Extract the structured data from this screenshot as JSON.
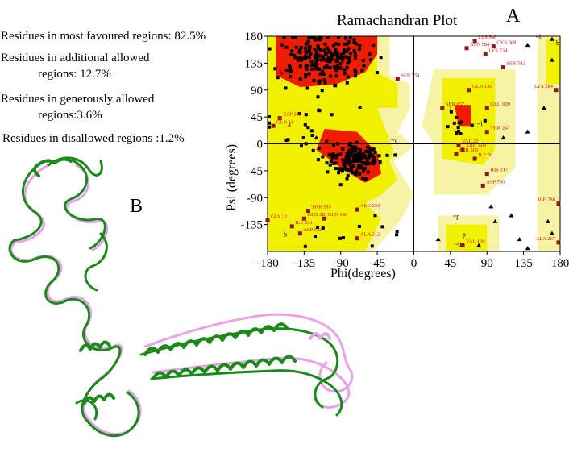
{
  "stats": {
    "favoured_label": "Residues in most favoured regions",
    "favoured_value": ": 82.5%",
    "additional_line1": "Residues in additional allowed",
    "additional_line2": "regions: 12.7%",
    "generous_line1": "Residues in generously allowed",
    "generous_line2": "regions:3.6%",
    "disallowed_label": "Residues in disallowed regions",
    "disallowed_value": ":1.2%"
  },
  "panels": {
    "a": "A",
    "b": "B"
  },
  "colors": {
    "most_favoured": "#ee1c00",
    "additional": "#f0f000",
    "generous": "#f6f3a4",
    "disallowed": "#ffffff",
    "points": "#000000",
    "labels": "#dd1111",
    "structure_green": "#1a8a1a",
    "structure_pink": "#e8a2e8"
  },
  "chart_data": {
    "type": "scatter",
    "title": "Ramachandran Plot",
    "xlabel": "Phi(degrees)",
    "ylabel": "Psi (degrees)",
    "xlim": [
      -180,
      180
    ],
    "ylim": [
      -180,
      180
    ],
    "xticks": [
      -180,
      -135,
      -90,
      -45,
      0,
      45,
      90,
      135,
      180
    ],
    "yticks": [
      180,
      135,
      90,
      45,
      0,
      -45,
      -90,
      -135
    ],
    "ytick_labels": [
      "180",
      "135",
      "90",
      "45",
      "0",
      "-45",
      "-90",
      "-135"
    ],
    "xtick_labels": [
      "-180",
      "-135",
      "-90",
      "-45",
      "0",
      "45",
      "90",
      "135",
      "180"
    ],
    "region_letters": [
      {
        "text": "b",
        "x": -165,
        "y": 115
      },
      {
        "text": "a",
        "x": -155,
        "y": 28
      },
      {
        "text": "b",
        "x": -160,
        "y": -155
      },
      {
        "text": "~a",
        "x": -28,
        "y": 3
      },
      {
        "text": "l",
        "x": 44,
        "y": 55
      },
      {
        "text": "~l",
        "x": 78,
        "y": 30
      },
      {
        "text": "~p",
        "x": 48,
        "y": -125
      },
      {
        "text": "p",
        "x": 60,
        "y": -155
      },
      {
        "text": "~b",
        "x": 150,
        "y": 175
      },
      {
        "text": "b",
        "x": 175,
        "y": 165
      },
      {
        "text": "~b",
        "x": 50,
        "y": -172
      }
    ],
    "outliers": [
      {
        "label": "LYS 548",
        "x": 75,
        "y": 172
      },
      {
        "label": "ASN 584",
        "x": 65,
        "y": 160
      },
      {
        "label": "CYS 588",
        "x": 98,
        "y": 163
      },
      {
        "label": "LYS 734",
        "x": 88,
        "y": 150
      },
      {
        "label": "SER 582",
        "x": 110,
        "y": 128
      },
      {
        "label": "SER 554",
        "x": -20,
        "y": 108
      },
      {
        "label": "GLN 130",
        "x": 68,
        "y": 90
      },
      {
        "label": "LYS 284",
        "x": 175,
        "y": 90
      },
      {
        "label": "SER 657",
        "x": 35,
        "y": 60
      },
      {
        "label": "GLU 699",
        "x": 90,
        "y": 60
      },
      {
        "label": "ASP 249",
        "x": -165,
        "y": 43
      },
      {
        "label": "GLN 19",
        "x": -173,
        "y": 30
      },
      {
        "label": "THR 247",
        "x": 90,
        "y": 20
      },
      {
        "label": "VAL 22",
        "x": 55,
        "y": -2
      },
      {
        "label": "ARG 608",
        "x": 60,
        "y": -10
      },
      {
        "label": "SER 503",
        "x": 52,
        "y": -17
      },
      {
        "label": "ILE 50",
        "x": 75,
        "y": -25
      },
      {
        "label": "HIS 317",
        "x": 90,
        "y": -50
      },
      {
        "label": "ASP 730",
        "x": 85,
        "y": -70
      },
      {
        "label": "ILE 788",
        "x": 178,
        "y": -100
      },
      {
        "label": "THR 359",
        "x": -130,
        "y": -112
      },
      {
        "label": "ASN 233",
        "x": -70,
        "y": -110
      },
      {
        "label": "GLN 281",
        "x": -135,
        "y": -125
      },
      {
        "label": "ILE 261",
        "x": -150,
        "y": -138
      },
      {
        "label": "GLN 140",
        "x": -110,
        "y": -125
      },
      {
        "label": "ASP 332",
        "x": -140,
        "y": -150
      },
      {
        "label": "ALA 212",
        "x": -70,
        "y": -158
      },
      {
        "label": "GLY 21",
        "x": -180,
        "y": -128
      },
      {
        "label": "VAL 100",
        "x": 60,
        "y": -170
      },
      {
        "label": "ALA 267",
        "x": 178,
        "y": -165
      }
    ],
    "point_clusters": [
      {
        "x": -105,
        "y": 140,
        "sx": 22,
        "sy": 17,
        "n": 150
      },
      {
        "x": -72,
        "y": -28,
        "sx": 14,
        "sy": 13,
        "n": 130
      },
      {
        "x": -125,
        "y": 150,
        "sx": 30,
        "sy": 25,
        "n": 40
      },
      {
        "x": -100,
        "y": -10,
        "sx": 30,
        "sy": 25,
        "n": 30
      },
      {
        "x": 65,
        "y": 30,
        "sx": 12,
        "sy": 15,
        "n": 12
      },
      {
        "x": -90,
        "y": -145,
        "sx": 30,
        "sy": 15,
        "n": 12
      },
      {
        "x": -135,
        "y": 60,
        "sx": 30,
        "sy": 30,
        "n": 12
      }
    ],
    "glycine_points": [
      {
        "x": 140,
        "y": 165
      },
      {
        "x": 170,
        "y": 140
      },
      {
        "x": 120,
        "y": -120
      },
      {
        "x": 170,
        "y": -150
      },
      {
        "x": 140,
        "y": 20
      },
      {
        "x": 165,
        "y": -130
      },
      {
        "x": 100,
        "y": -130
      },
      {
        "x": 130,
        "y": -160
      },
      {
        "x": 160,
        "y": 60
      },
      {
        "x": 95,
        "y": -105
      },
      {
        "x": 140,
        "y": -175
      },
      {
        "x": 110,
        "y": 10
      },
      {
        "x": 80,
        "y": -170
      },
      {
        "x": 170,
        "y": 175
      },
      {
        "x": -120,
        "y": 10
      },
      {
        "x": 30,
        "y": -160
      }
    ]
  }
}
